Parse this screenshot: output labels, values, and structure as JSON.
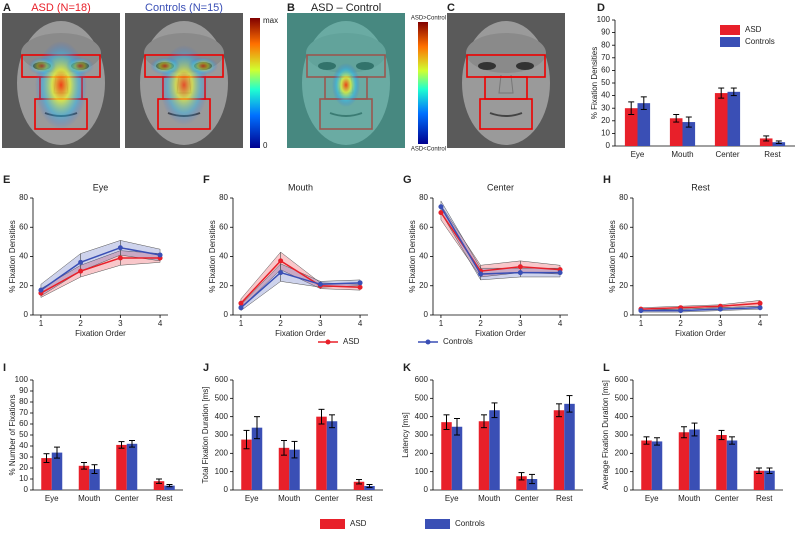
{
  "figures": [
    {
      "panel": "A",
      "captions": [
        "ASD (N=18)",
        "Controls (N=15)"
      ],
      "colorbar": [
        "max",
        "0"
      ]
    },
    {
      "panel": "B",
      "captions": [
        "ASD – Control"
      ],
      "colorbar": [
        "ASD>Control",
        "ASD<Control"
      ]
    },
    {
      "panel": "C"
    }
  ],
  "chart_data": [
    {
      "panel": "D",
      "type": "bar",
      "ylabel": "% Fixation Densities",
      "categories": [
        "Eye",
        "Mouth",
        "Center",
        "Rest"
      ],
      "series": [
        {
          "name": "ASD",
          "color": "#e8202a",
          "values": [
            30,
            22,
            42,
            6
          ],
          "errors": [
            5,
            3,
            4,
            2
          ]
        },
        {
          "name": "Controls",
          "color": "#3a4fb5",
          "values": [
            34,
            19,
            43,
            3
          ],
          "errors": [
            5,
            4,
            3,
            1
          ]
        }
      ],
      "ylim": [
        0,
        100
      ],
      "yticks": [
        0,
        10,
        20,
        30,
        40,
        50,
        60,
        70,
        80,
        90,
        100
      ],
      "legend": "upper right"
    },
    {
      "panel": "E",
      "type": "line",
      "title": "Eye",
      "xlabel": "Fixation Order",
      "ylabel": "% Fixation Densities",
      "x": [
        1,
        2,
        3,
        4
      ],
      "series": [
        {
          "name": "ASD",
          "color": "#e8202a",
          "values": [
            15,
            30,
            39,
            39
          ],
          "errors": [
            3,
            4,
            5,
            3
          ]
        },
        {
          "name": "Controls",
          "color": "#3a4fb5",
          "values": [
            17,
            36,
            46,
            41
          ],
          "errors": [
            4,
            6,
            5,
            4
          ]
        }
      ],
      "xlim": [
        0.8,
        4.2
      ],
      "xticks": [
        1,
        2,
        3,
        4
      ],
      "ylim": [
        0,
        80
      ],
      "yticks": [
        0,
        20,
        40,
        60,
        80
      ]
    },
    {
      "panel": "F",
      "type": "line",
      "title": "Mouth",
      "xlabel": "Fixation Order",
      "ylabel": "% Fixation Densities",
      "x": [
        1,
        2,
        3,
        4
      ],
      "series": [
        {
          "name": "ASD",
          "color": "#e8202a",
          "values": [
            8,
            37,
            20,
            19
          ],
          "errors": [
            3,
            6,
            2,
            2
          ]
        },
        {
          "name": "Controls",
          "color": "#3a4fb5",
          "values": [
            5,
            29,
            21,
            22
          ],
          "errors": [
            2,
            6,
            2,
            2
          ]
        }
      ],
      "xlim": [
        0.8,
        4.2
      ],
      "xticks": [
        1,
        2,
        3,
        4
      ],
      "ylim": [
        0,
        80
      ],
      "yticks": [
        0,
        20,
        40,
        60,
        80
      ]
    },
    {
      "panel": "G",
      "type": "line",
      "title": "Center",
      "xlabel": "Fixation Order",
      "ylabel": "% Fixation Densities",
      "x": [
        1,
        2,
        3,
        4
      ],
      "series": [
        {
          "name": "ASD",
          "color": "#e8202a",
          "values": [
            70,
            30,
            33,
            31
          ],
          "errors": [
            5,
            4,
            4,
            3
          ]
        },
        {
          "name": "Controls",
          "color": "#3a4fb5",
          "values": [
            74,
            28,
            29,
            29
          ],
          "errors": [
            4,
            4,
            3,
            3
          ]
        }
      ],
      "xlim": [
        0.8,
        4.2
      ],
      "xticks": [
        1,
        2,
        3,
        4
      ],
      "ylim": [
        0,
        80
      ],
      "yticks": [
        0,
        20,
        40,
        60,
        80
      ]
    },
    {
      "panel": "H",
      "type": "line",
      "title": "Rest",
      "xlabel": "Fixation Order",
      "ylabel": "% Fixation Densities",
      "x": [
        1,
        2,
        3,
        4
      ],
      "series": [
        {
          "name": "ASD",
          "color": "#e8202a",
          "values": [
            4,
            5,
            6,
            8
          ],
          "errors": [
            1,
            1,
            1,
            2
          ]
        },
        {
          "name": "Controls",
          "color": "#3a4fb5",
          "values": [
            3,
            3,
            4,
            5
          ],
          "errors": [
            1,
            1,
            1,
            1
          ]
        }
      ],
      "xlim": [
        0.8,
        4.2
      ],
      "xticks": [
        1,
        2,
        3,
        4
      ],
      "ylim": [
        0,
        80
      ],
      "yticks": [
        0,
        20,
        40,
        60,
        80
      ]
    },
    {
      "panel": "I",
      "type": "bar",
      "ylabel": "% Number of Fixations",
      "categories": [
        "Eye",
        "Mouth",
        "Center",
        "Rest"
      ],
      "series": [
        {
          "name": "ASD",
          "color": "#e8202a",
          "values": [
            29,
            22,
            41,
            8
          ],
          "errors": [
            4,
            3,
            3,
            2
          ]
        },
        {
          "name": "Controls",
          "color": "#3a4fb5",
          "values": [
            34,
            19,
            42,
            4
          ],
          "errors": [
            5,
            4,
            3,
            1
          ]
        }
      ],
      "ylim": [
        0,
        100
      ],
      "yticks": [
        0,
        10,
        20,
        30,
        40,
        50,
        60,
        70,
        80,
        90,
        100
      ]
    },
    {
      "panel": "J",
      "type": "bar",
      "ylabel": "Total Fixation Duration [ms]",
      "categories": [
        "Eye",
        "Mouth",
        "Center",
        "Rest"
      ],
      "series": [
        {
          "name": "ASD",
          "color": "#e8202a",
          "values": [
            275,
            230,
            400,
            45
          ],
          "errors": [
            50,
            40,
            40,
            12
          ]
        },
        {
          "name": "Controls",
          "color": "#3a4fb5",
          "values": [
            340,
            220,
            375,
            22
          ],
          "errors": [
            60,
            45,
            35,
            8
          ]
        }
      ],
      "ylim": [
        0,
        600
      ],
      "yticks": [
        0,
        100,
        200,
        300,
        400,
        500,
        600
      ]
    },
    {
      "panel": "K",
      "type": "bar",
      "ylabel": "Latency [ms]",
      "categories": [
        "Eye",
        "Mouth",
        "Center",
        "Rest"
      ],
      "series": [
        {
          "name": "ASD",
          "color": "#e8202a",
          "values": [
            370,
            375,
            75,
            435
          ],
          "errors": [
            40,
            35,
            20,
            35
          ]
        },
        {
          "name": "Controls",
          "color": "#3a4fb5",
          "values": [
            345,
            435,
            60,
            470
          ],
          "errors": [
            45,
            40,
            25,
            45
          ]
        }
      ],
      "ylim": [
        0,
        600
      ],
      "yticks": [
        0,
        100,
        200,
        300,
        400,
        500,
        600
      ]
    },
    {
      "panel": "L",
      "type": "bar",
      "ylabel": "Average Fixation Duration [ms]",
      "categories": [
        "Eye",
        "Mouth",
        "Center",
        "Rest"
      ],
      "series": [
        {
          "name": "ASD",
          "color": "#e8202a",
          "values": [
            270,
            315,
            300,
            105
          ],
          "errors": [
            20,
            30,
            25,
            15
          ]
        },
        {
          "name": "Controls",
          "color": "#3a4fb5",
          "values": [
            265,
            330,
            270,
            105
          ],
          "errors": [
            20,
            35,
            20,
            15
          ]
        }
      ],
      "ylim": [
        0,
        600
      ],
      "yticks": [
        0,
        100,
        200,
        300,
        400,
        500,
        600
      ]
    }
  ]
}
